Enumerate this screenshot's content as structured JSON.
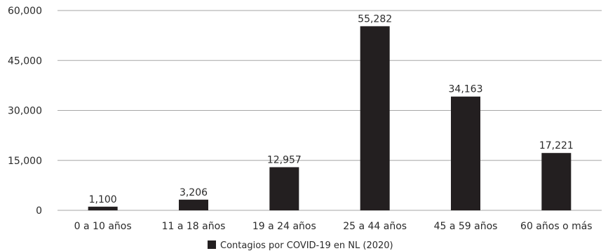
{
  "chart_data": {
    "type": "bar",
    "categories": [
      "0 a 10 años",
      "11 a 18 años",
      "19 a 24 años",
      "25 a 44 años",
      "45 a 59 años",
      "60 años o más"
    ],
    "series": [
      {
        "name": "Contagios por COVID-19 en NL (2020)",
        "values": [
          1100,
          3206,
          12957,
          55282,
          34163,
          17221
        ]
      }
    ],
    "data_labels": [
      "1,100",
      "3,206",
      "12,957",
      "55,282",
      "34,163",
      "17,221"
    ],
    "y_ticks": [
      0,
      15000,
      30000,
      45000,
      60000
    ],
    "y_tick_labels": [
      "0",
      "15,000",
      "30,000",
      "45,000",
      "60,000"
    ],
    "ylim": [
      0,
      60000
    ],
    "grid": "horizontal",
    "legend_position": "bottom-center",
    "bar_color": "#231f20",
    "grid_color": "#a6a6a6"
  }
}
